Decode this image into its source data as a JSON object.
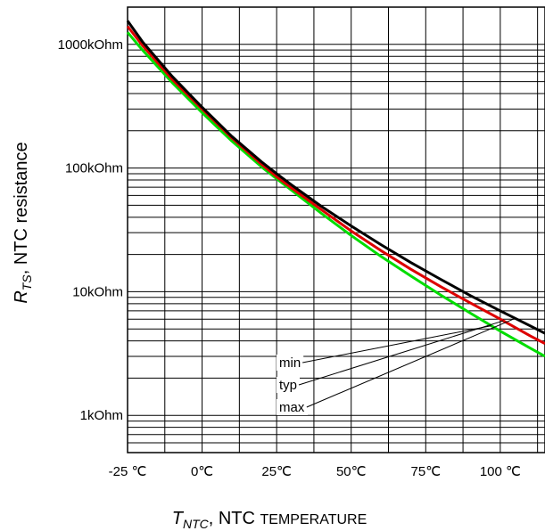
{
  "chart_data": {
    "type": "line",
    "title": "",
    "xlabel_main": "T",
    "xlabel_sub": "NTC",
    "xlabel_rest": ", NTC ",
    "xlabel_smallcaps": "TEMPERATURE",
    "ylabel_main": "R",
    "ylabel_sub": "TS",
    "ylabel_rest": ", NTC resistance",
    "x_scale": "linear",
    "y_scale": "log",
    "xlim": [
      -25,
      115
    ],
    "ylim": [
      500,
      2000000
    ],
    "x_ticks": [
      -25,
      0,
      25,
      50,
      75,
      100
    ],
    "x_tick_labels": [
      "-25 ℃",
      "0℃",
      "25℃",
      "50℃",
      "75℃",
      "100 ℃"
    ],
    "y_ticks": [
      1000,
      10000,
      100000,
      1000000
    ],
    "y_tick_labels": [
      "1kOhm",
      "10kOhm",
      "100kOhm",
      "1000kOhm"
    ],
    "grid": true,
    "series": [
      {
        "name": "min",
        "color": "#00dd00",
        "x": [
          -25,
          -20,
          -10,
          0,
          10,
          20,
          25,
          30,
          40,
          50,
          60,
          70,
          80,
          90,
          100,
          110,
          115
        ],
        "y": [
          1250000,
          900000,
          490000,
          280000,
          165000,
          102000,
          82000,
          66000,
          43000,
          28500,
          19300,
          13400,
          9400,
          6700,
          4800,
          3500,
          3000
        ]
      },
      {
        "name": "typ",
        "color": "#dd0000",
        "x": [
          -25,
          -20,
          -10,
          0,
          10,
          20,
          25,
          30,
          40,
          50,
          60,
          70,
          80,
          90,
          100,
          110,
          115
        ],
        "y": [
          1400000,
          980000,
          520000,
          300000,
          175000,
          107000,
          85000,
          69000,
          46000,
          31000,
          21500,
          15200,
          11000,
          8100,
          6000,
          4400,
          3800
        ]
      },
      {
        "name": "max",
        "color": "#000000",
        "x": [
          -25,
          -20,
          -10,
          0,
          10,
          20,
          25,
          30,
          40,
          50,
          60,
          70,
          80,
          90,
          100,
          110,
          115
        ],
        "y": [
          1550000,
          1050000,
          550000,
          310000,
          180000,
          112000,
          90000,
          73000,
          49000,
          34000,
          24000,
          17200,
          12600,
          9300,
          7000,
          5300,
          4600
        ]
      }
    ],
    "annotations": [
      "min",
      "typ",
      "max"
    ]
  }
}
